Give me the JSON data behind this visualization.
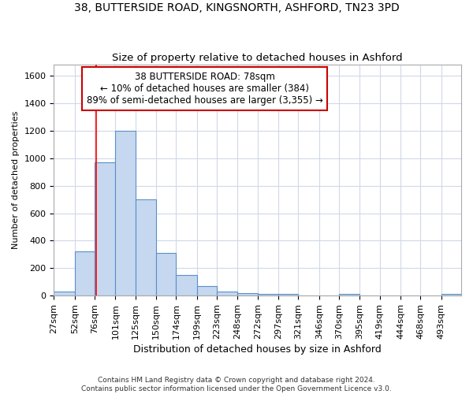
{
  "title1": "38, BUTTERSIDE ROAD, KINGSNORTH, ASHFORD, TN23 3PD",
  "title2": "Size of property relative to detached houses in Ashford",
  "xlabel": "Distribution of detached houses by size in Ashford",
  "ylabel": "Number of detached properties",
  "footnote1": "Contains HM Land Registry data © Crown copyright and database right 2024.",
  "footnote2": "Contains public sector information licensed under the Open Government Licence v3.0.",
  "annotation_line1": "38 BUTTERSIDE ROAD: 78sqm",
  "annotation_line2": "← 10% of detached houses are smaller (384)",
  "annotation_line3": "89% of semi-detached houses are larger (3,355) →",
  "bar_color": "#c5d8f0",
  "bar_edge_color": "#5b8fc9",
  "red_line_x": 78,
  "annotation_box_color": "#ffffff",
  "annotation_box_edge_color": "#cc0000",
  "bin_edges": [
    27,
    52,
    76,
    101,
    125,
    150,
    174,
    199,
    223,
    248,
    272,
    297,
    321,
    346,
    370,
    395,
    419,
    444,
    468,
    493,
    517
  ],
  "bar_heights": [
    30,
    320,
    970,
    1200,
    700,
    310,
    150,
    70,
    30,
    20,
    15,
    15,
    0,
    0,
    15,
    0,
    0,
    0,
    0,
    15
  ],
  "ylim": [
    0,
    1680
  ],
  "yticks": [
    0,
    200,
    400,
    600,
    800,
    1000,
    1200,
    1400,
    1600
  ],
  "background_color": "#ffffff",
  "grid_color": "#d0d8e8",
  "title1_fontsize": 10,
  "title2_fontsize": 9.5,
  "xlabel_fontsize": 9,
  "ylabel_fontsize": 8,
  "tick_fontsize": 8,
  "annotation_fontsize": 8.5,
  "footnote_fontsize": 6.5
}
